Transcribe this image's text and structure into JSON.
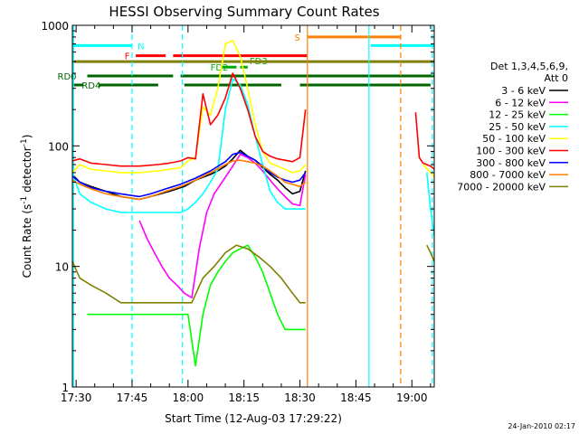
{
  "chart_data": {
    "type": "line",
    "title": "HESSI Observing Summary Count Rates",
    "xlabel": "Start Time (12-Aug-03 17:29:22)",
    "ylabel": "Count Rate (s",
    "ylabel_sup": "-1",
    "ylabel_mid": " detector",
    "ylabel_sup2": "-1",
    "ylabel_end": ")",
    "y_scale": "log",
    "xlim_minutes": [
      -1,
      96
    ],
    "ylim": [
      1,
      1000
    ],
    "x_ticks": [
      {
        "m": 0,
        "label": "17:30"
      },
      {
        "m": 15,
        "label": "17:45"
      },
      {
        "m": 30,
        "label": "18:00"
      },
      {
        "m": 45,
        "label": "18:15"
      },
      {
        "m": 60,
        "label": "18:30"
      },
      {
        "m": 75,
        "label": "18:45"
      },
      {
        "m": 90,
        "label": "19:00"
      }
    ],
    "y_ticks": [
      {
        "v": 1,
        "label": "1"
      },
      {
        "v": 10,
        "label": "10"
      },
      {
        "v": 100,
        "label": "100"
      },
      {
        "v": 1000,
        "label": "1000"
      }
    ],
    "legend_title": "Det 1,3,4,5,6,9,",
    "legend_subtitle": "Att 0",
    "series": [
      {
        "name": "3 - 6 keV",
        "color": "#000000",
        "x": [
          -1,
          1,
          4,
          8,
          12,
          17,
          20,
          25,
          29,
          32,
          34,
          36,
          38,
          40,
          42,
          44,
          46,
          48,
          50,
          52,
          54,
          56,
          58,
          60,
          61.5
        ],
        "y": [
          58,
          50,
          46,
          42,
          38,
          36,
          38,
          42,
          46,
          52,
          55,
          58,
          62,
          68,
          78,
          92,
          82,
          76,
          66,
          58,
          52,
          45,
          40,
          42,
          62
        ]
      },
      {
        "name": "6 - 12 keV",
        "color": "#ff00ff",
        "x": [
          17,
          19,
          21,
          23,
          25,
          27,
          29,
          31,
          33,
          35,
          37,
          40,
          42,
          44,
          46,
          48,
          50,
          52,
          54,
          56,
          58,
          60,
          61.5
        ],
        "y": [
          24,
          17,
          13,
          10,
          8,
          7,
          6,
          5.5,
          14,
          28,
          40,
          55,
          68,
          85,
          80,
          72,
          62,
          52,
          44,
          38,
          33,
          32,
          58
        ]
      },
      {
        "name": "12 - 25 keV",
        "color": "#00ff00",
        "x": [
          3,
          8,
          12,
          17,
          22,
          25,
          28,
          30,
          32,
          34,
          36,
          38,
          40,
          42,
          44,
          46,
          48,
          50,
          52,
          54,
          56,
          58,
          60,
          61.5
        ],
        "y": [
          4,
          4,
          4,
          4,
          4,
          4,
          4,
          4,
          1.5,
          4,
          7,
          9,
          11,
          13,
          14,
          15,
          12,
          9,
          6,
          4,
          3,
          3,
          3,
          3
        ]
      },
      {
        "name": "25 - 50 keV",
        "color": "#00ffff",
        "x": [
          -1,
          1,
          4,
          8,
          12,
          17,
          22,
          25,
          28,
          30,
          32,
          34,
          36,
          38,
          40,
          42,
          44,
          46,
          48,
          50,
          52,
          54,
          56,
          58,
          60,
          61.5,
          94,
          95,
          96
        ],
        "y": [
          60,
          40,
          34,
          30,
          28,
          28,
          28,
          28,
          28,
          30,
          34,
          40,
          50,
          64,
          200,
          360,
          320,
          220,
          120,
          70,
          42,
          34,
          30,
          30,
          30,
          30,
          60,
          30,
          18
        ]
      },
      {
        "name": "50 - 100 keV",
        "color": "#ffff00",
        "x": [
          -1,
          1,
          4,
          8,
          12,
          17,
          22,
          25,
          28,
          30,
          32,
          34,
          36,
          38,
          40,
          42,
          44,
          46,
          48,
          50,
          52,
          54,
          56,
          58,
          60,
          61.5,
          93,
          94,
          95,
          96
        ],
        "y": [
          60,
          70,
          64,
          62,
          60,
          60,
          62,
          64,
          66,
          75,
          80,
          210,
          180,
          300,
          700,
          750,
          550,
          300,
          150,
          90,
          72,
          68,
          64,
          60,
          62,
          70,
          70,
          65,
          60,
          55
        ]
      },
      {
        "name": "100 - 300 keV",
        "color": "#ff0000",
        "x": [
          -1,
          1,
          4,
          8,
          12,
          17,
          22,
          25,
          28,
          30,
          32,
          34,
          36,
          38,
          40,
          42,
          44,
          46,
          48,
          50,
          52,
          54,
          56,
          58,
          60,
          61.5,
          91,
          92,
          93,
          94,
          95,
          96
        ],
        "y": [
          75,
          78,
          72,
          70,
          68,
          68,
          70,
          72,
          75,
          80,
          78,
          270,
          150,
          180,
          250,
          400,
          300,
          200,
          120,
          90,
          82,
          78,
          76,
          74,
          80,
          200,
          190,
          80,
          72,
          70,
          68,
          64
        ]
      },
      {
        "name": "300 - 800 keV",
        "color": "#0000ff",
        "x": [
          -1,
          1,
          4,
          8,
          12,
          17,
          20,
          24,
          28,
          32,
          36,
          40,
          42,
          44,
          46,
          48,
          50,
          52,
          54,
          56,
          58,
          60,
          61.5
        ],
        "y": [
          56,
          50,
          45,
          42,
          40,
          38,
          40,
          44,
          48,
          54,
          62,
          74,
          85,
          88,
          82,
          76,
          68,
          60,
          55,
          52,
          50,
          52,
          60
        ]
      },
      {
        "name": "800 - 7000 keV",
        "color": "#ff7f00",
        "x": [
          -1,
          1,
          4,
          8,
          12,
          17,
          20,
          24,
          28,
          32,
          36,
          40,
          42,
          44,
          46,
          48,
          50,
          52,
          54,
          56,
          58,
          60,
          61.5
        ],
        "y": [
          52,
          48,
          44,
          40,
          38,
          36,
          38,
          42,
          46,
          52,
          60,
          70,
          75,
          76,
          74,
          72,
          68,
          62,
          56,
          50,
          48,
          46,
          50
        ]
      },
      {
        "name": "7000 - 20000 keV",
        "color": "#7f7f00",
        "x": [
          -1,
          1,
          4,
          8,
          12,
          17,
          22,
          25,
          28,
          31,
          34,
          37,
          40,
          43,
          46,
          49,
          52,
          55,
          58,
          60,
          61.5,
          94,
          95,
          96
        ],
        "y": [
          11,
          8,
          7,
          6,
          5,
          5,
          5,
          5,
          5,
          5,
          8,
          10,
          13,
          15,
          14,
          12,
          10,
          8,
          6,
          5,
          5,
          15,
          13,
          11
        ]
      }
    ],
    "intervals": [
      {
        "name": "N",
        "color": "#00ffff",
        "y": 680,
        "segments": [
          [
            -1,
            15
          ],
          [
            79,
            96
          ]
        ],
        "label_at": 16.5
      },
      {
        "name": "S",
        "color": "#ff7f00",
        "y": 800,
        "segments": [
          [
            62,
            87
          ]
        ],
        "label_at": 58.5
      },
      {
        "name": "F",
        "color": "#ff0000",
        "y": 560,
        "segments": [
          [
            16,
            24
          ],
          [
            26,
            62
          ]
        ],
        "label_at": 13
      },
      {
        "name": "FD3",
        "color": "#00aa00",
        "y": 510,
        "segments": [],
        "label_at": 46.5
      },
      {
        "name": "FD2",
        "color": "#00aa00",
        "y": 450,
        "segments": [
          [
            39,
            43
          ],
          [
            44,
            46
          ]
        ],
        "label_at": 36
      },
      {
        "name": "band",
        "color": "#7f7f00",
        "y": 500,
        "segments": [
          [
            -1,
            96
          ]
        ],
        "label_at": null
      },
      {
        "name": "RD0",
        "color": "#006400",
        "y": 380,
        "segments": [
          [
            3,
            26
          ],
          [
            28,
            96
          ]
        ],
        "label_at": -5
      },
      {
        "name": "RD4",
        "color": "#006400",
        "y": 320,
        "segments": [
          [
            -1,
            2
          ],
          [
            6,
            22
          ],
          [
            29,
            55
          ],
          [
            60,
            95
          ]
        ],
        "label_at": 1.5
      }
    ],
    "vlines": [
      {
        "m": -0.7,
        "color": "#00ffff",
        "dash": false
      },
      {
        "m": 15,
        "color": "#00ffff",
        "dash": true
      },
      {
        "m": 28.5,
        "color": "#00ffff",
        "dash": true
      },
      {
        "m": 62,
        "color": "#ff7f00",
        "dash": false
      },
      {
        "m": 78.5,
        "color": "#00ffff",
        "dash": false
      },
      {
        "m": 87,
        "color": "#ff7f00",
        "dash": true
      },
      {
        "m": 95.5,
        "color": "#00ffff",
        "dash": true
      }
    ]
  },
  "timestamp": "24-Jan-2010 02:17"
}
